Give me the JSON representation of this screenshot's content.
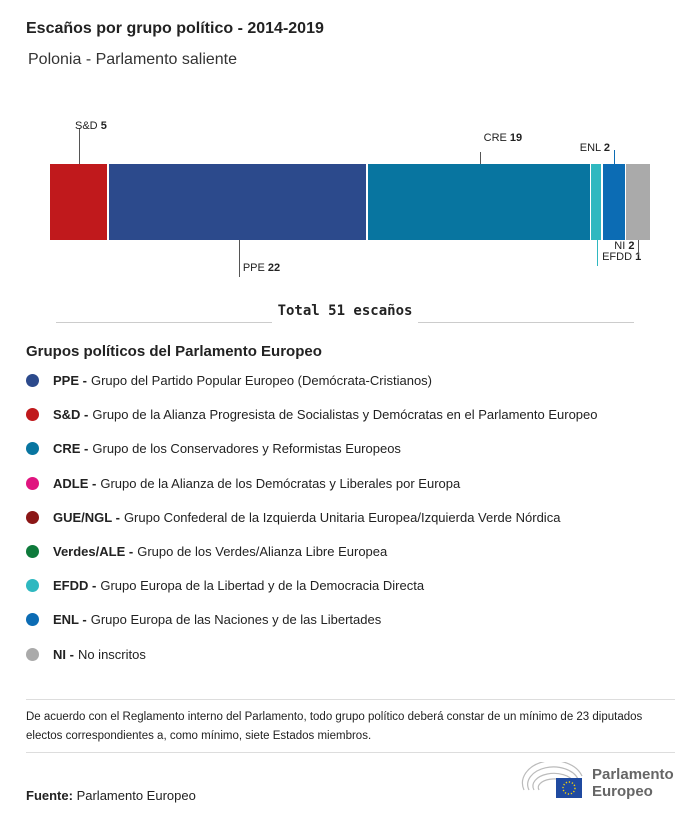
{
  "title": "Escaños por grupo político - 2014-2019",
  "subtitle": "Polonia - Parlamento saliente",
  "chart_data": {
    "type": "bar",
    "orientation": "horizontal-stacked",
    "categories": [
      "S&D",
      "PPE",
      "CRE",
      "EFDD",
      "ENL",
      "NI"
    ],
    "values": [
      5,
      22,
      19,
      1,
      2,
      2
    ],
    "colors": [
      "#c0191c",
      "#2c4a8c",
      "#0875a0",
      "#2fb8c0",
      "#0c6cb4",
      "#aaaaaa"
    ],
    "total": 51
  },
  "total_label": "Total 51 escaños",
  "legend": {
    "title": "Grupos políticos del Parlamento Europeo",
    "items": [
      {
        "abbr": "PPE -",
        "name": "Grupo del Partido Popular Europeo (Demócrata-Cristianos)",
        "color": "#2c4a8c"
      },
      {
        "abbr": "S&D -",
        "name": "Grupo de la Alianza Progresista de Socialistas y Demócratas en el Parlamento Europeo",
        "color": "#c0191c"
      },
      {
        "abbr": "CRE -",
        "name": "Grupo de los Conservadores y Reformistas Europeos",
        "color": "#0875a0"
      },
      {
        "abbr": "ADLE -",
        "name": "Grupo de la Alianza de los Demócratas y Liberales por Europa",
        "color": "#e0147f"
      },
      {
        "abbr": "GUE/NGL -",
        "name": "Grupo Confederal de la Izquierda Unitaria Europea/Izquierda Verde Nórdica",
        "color": "#8b1616"
      },
      {
        "abbr": "Verdes/ALE -",
        "name": "Grupo de los Verdes/Alianza Libre Europea",
        "color": "#0e7a3b"
      },
      {
        "abbr": "EFDD -",
        "name": "Grupo Europa de la Libertad y de la Democracia Directa",
        "color": "#2fb8c0"
      },
      {
        "abbr": "ENL -",
        "name": "Grupo Europa de las Naciones y de las Libertades",
        "color": "#0c6cb4"
      },
      {
        "abbr": "NI -",
        "name": "No inscritos",
        "color": "#aaaaaa"
      }
    ]
  },
  "note": "De acuerdo con el Reglamento interno del Parlamento, todo grupo político deberá constar de un mínimo de 23 diputados electos correspondientes a, como mínimo, siete Estados miembros.",
  "source": {
    "label": "Fuente:",
    "value": "Parlamento Europeo"
  },
  "logo": {
    "text1": "Parlamento",
    "text2": "Europeo"
  }
}
